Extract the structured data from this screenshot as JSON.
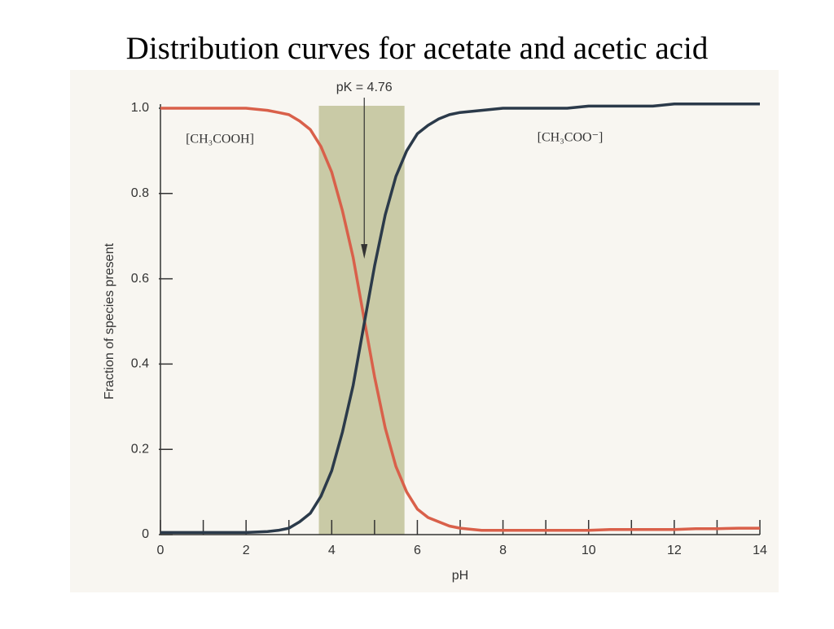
{
  "chart_data": {
    "type": "line",
    "title": "Distribution curves for acetate and acetic acid",
    "xlabel": "pH",
    "ylabel": "Fraction of species present",
    "x": [
      0,
      0.5,
      1,
      1.5,
      2,
      2.5,
      2.75,
      3,
      3.25,
      3.5,
      3.75,
      4,
      4.25,
      4.5,
      4.75,
      5,
      5.25,
      5.5,
      5.75,
      6,
      6.25,
      6.5,
      6.75,
      7,
      7.5,
      8,
      8.5,
      9,
      9.5,
      10,
      10.5,
      11,
      11.5,
      12,
      12.5,
      13,
      13.5,
      14
    ],
    "series": [
      {
        "name": "[CH₃COOH]",
        "color": "#d9604a",
        "values": [
          1,
          1,
          1,
          1,
          1,
          0.995,
          0.99,
          0.985,
          0.97,
          0.95,
          0.91,
          0.85,
          0.76,
          0.65,
          0.51,
          0.37,
          0.25,
          0.16,
          0.1,
          0.06,
          0.04,
          0.03,
          0.02,
          0.015,
          0.01,
          0.01,
          0.01,
          0.01,
          0.01,
          0.01,
          0.012,
          0.012,
          0.012,
          0.012,
          0.014,
          0.014,
          0.015,
          0.015
        ]
      },
      {
        "name": "[CH₃COO⁻]",
        "color": "#2b3a4a",
        "values": [
          0.005,
          0.005,
          0.005,
          0.005,
          0.005,
          0.007,
          0.01,
          0.015,
          0.03,
          0.05,
          0.09,
          0.15,
          0.24,
          0.35,
          0.49,
          0.63,
          0.75,
          0.84,
          0.9,
          0.94,
          0.96,
          0.975,
          0.985,
          0.99,
          0.995,
          1,
          1,
          1,
          1,
          1.005,
          1.005,
          1.005,
          1.005,
          1.01,
          1.01,
          1.01,
          1.01,
          1.01
        ]
      }
    ],
    "shaded_range": [
      3.7,
      5.7
    ],
    "shaded_color": "#c9caa6",
    "annotation": {
      "text": "pK = 4.76",
      "x": 4.76
    },
    "xlim": [
      0,
      14
    ],
    "xticks": [
      0,
      2,
      4,
      6,
      8,
      10,
      12,
      14
    ],
    "xminor": [
      1,
      3,
      5,
      7,
      9,
      11,
      13
    ],
    "ylim": [
      0,
      1
    ],
    "yticks": [
      0,
      0.2,
      0.4,
      0.6,
      0.8,
      {
        "value": 1,
        "label": "1.0"
      }
    ]
  }
}
